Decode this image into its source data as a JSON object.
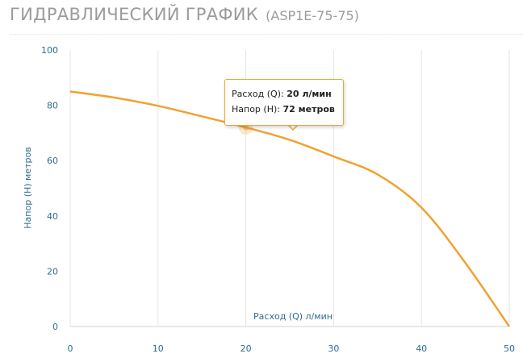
{
  "header": {
    "title": "ГИДРАВЛИЧЕСКИЙ ГРАФИК",
    "model": "(ASP1E-75-75)"
  },
  "colors": {
    "curve": "#f2a131",
    "axis_text": "#2f6d8e",
    "grid": "#e6e6e6",
    "title": "#9b9b9b"
  },
  "tooltip": {
    "flow_label": "Расход (Q):",
    "flow_value": "20 л/мин",
    "head_label": "Напор (H):",
    "head_value": "72 метров"
  },
  "chart_data": {
    "type": "line",
    "title": "",
    "xlabel": "Расход (Q) л/мин",
    "ylabel": "Напор (H) метров",
    "xlim": [
      0,
      50
    ],
    "ylim": [
      0,
      100
    ],
    "x_ticks": [
      0,
      10,
      20,
      30,
      40,
      50
    ],
    "y_ticks": [
      0,
      20,
      40,
      60,
      80,
      100
    ],
    "grid": "vertical",
    "highlight": {
      "x": 20,
      "y": 72
    },
    "series": [
      {
        "x": [
          0,
          5,
          10,
          15,
          20,
          25,
          30,
          35,
          40,
          45,
          50
        ],
        "y": [
          85,
          82.8,
          79.8,
          76,
          72,
          67.5,
          61.5,
          55,
          43,
          23,
          0
        ]
      }
    ]
  }
}
